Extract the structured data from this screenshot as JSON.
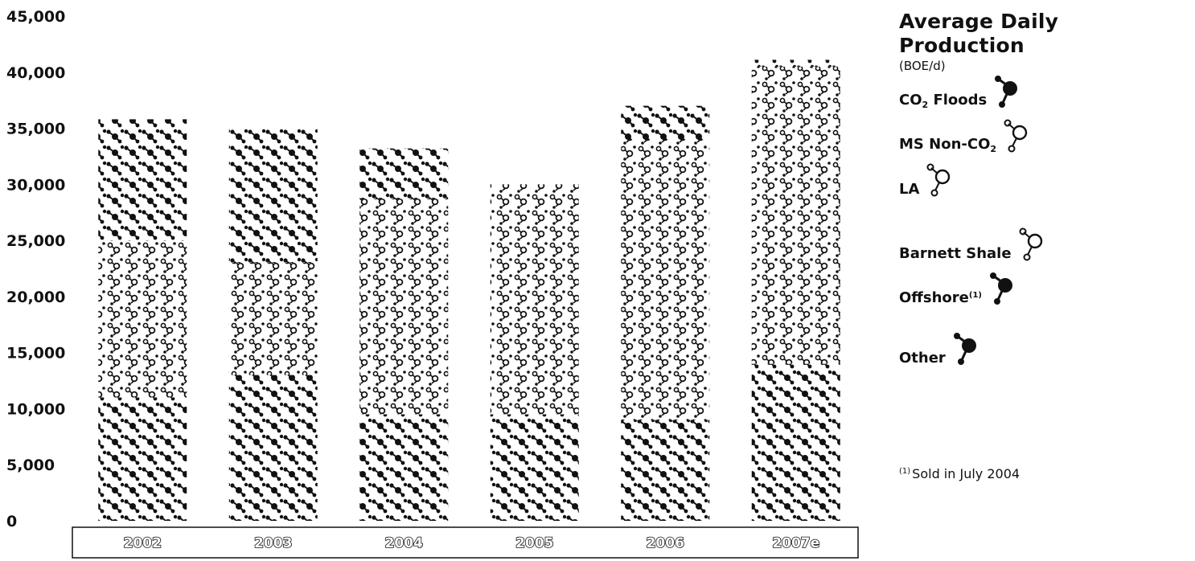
{
  "chart_data": {
    "type": "bar",
    "stacked": true,
    "title": "Average Daily Production",
    "subtitle": "(BOE/d)",
    "categories": [
      "2002",
      "2003",
      "2004",
      "2005",
      "2006",
      "2007e"
    ],
    "ylim": [
      0,
      45000
    ],
    "yticks": [
      "45,000",
      "40,000",
      "35,000",
      "30,000",
      "25,000",
      "20,000",
      "15,000",
      "10,000",
      "5,000",
      "0"
    ],
    "ytick_values": [
      45000,
      40000,
      35000,
      30000,
      25000,
      20000,
      15000,
      10000,
      5000,
      0
    ],
    "totals": [
      35800,
      35000,
      33200,
      30000,
      37000,
      41100
    ],
    "series": [
      {
        "name_base": "CO",
        "name_sub": "2",
        "name_rest": " Floods",
        "icon": "filled",
        "values": [
          11000,
          13000,
          9500,
          9500,
          9000,
          14000
        ]
      },
      {
        "name_base": "MS Non-CO",
        "name_sub": "2",
        "name_rest": "",
        "icon": "hollow",
        "values": [
          14000,
          10000,
          10500,
          11500,
          11500,
          11000
        ]
      },
      {
        "name_base": "LA",
        "name_sub": "",
        "name_rest": "",
        "icon": "hollow",
        "values": [
          0,
          0,
          8700,
          9000,
          10500,
          10000
        ]
      },
      {
        "name_base": "Barnett Shale",
        "name_sub": "",
        "name_rest": "",
        "icon": "hollow",
        "values": [
          0,
          0,
          0,
          0,
          3000,
          5500
        ]
      },
      {
        "name_base": "Offshore",
        "name_sub": "",
        "name_rest": "",
        "name_sup": "(1)",
        "icon": "filled",
        "values": [
          1000,
          4000,
          0,
          0,
          0,
          0
        ]
      },
      {
        "name_base": "Other",
        "name_sub": "",
        "name_rest": "",
        "icon": "filled",
        "values": [
          9800,
          8000,
          4500,
          0,
          3000,
          600
        ]
      }
    ],
    "legend_position": "right",
    "grid": false
  },
  "footnote": {
    "marker": "(1)",
    "text": "Sold in July 2004"
  },
  "colors": {
    "ink": "#111111",
    "background": "#ffffff"
  }
}
